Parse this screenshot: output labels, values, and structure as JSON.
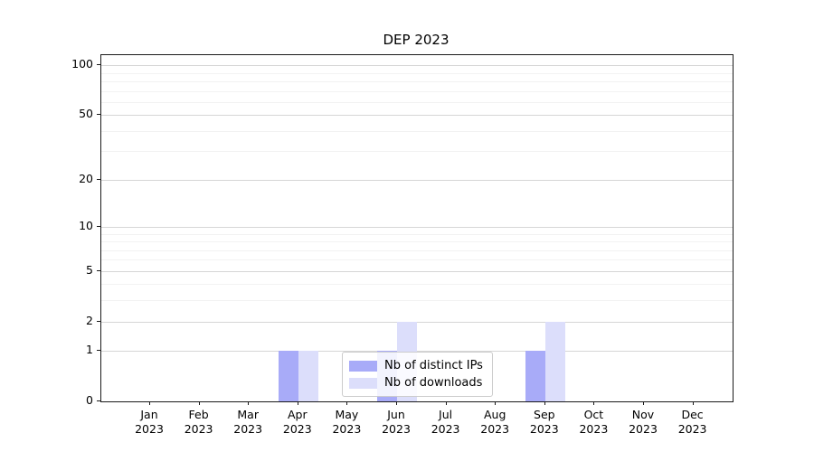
{
  "chart_data": {
    "type": "bar",
    "title": "DEP 2023",
    "categories": [
      {
        "month": "Jan",
        "year": "2023"
      },
      {
        "month": "Feb",
        "year": "2023"
      },
      {
        "month": "Mar",
        "year": "2023"
      },
      {
        "month": "Apr",
        "year": "2023"
      },
      {
        "month": "May",
        "year": "2023"
      },
      {
        "month": "Jun",
        "year": "2023"
      },
      {
        "month": "Jul",
        "year": "2023"
      },
      {
        "month": "Aug",
        "year": "2023"
      },
      {
        "month": "Sep",
        "year": "2023"
      },
      {
        "month": "Oct",
        "year": "2023"
      },
      {
        "month": "Nov",
        "year": "2023"
      },
      {
        "month": "Dec",
        "year": "2023"
      }
    ],
    "series": [
      {
        "name": "Nb of distinct IPs",
        "color": "#a8abf8",
        "values": [
          0,
          0,
          0,
          1,
          0,
          1,
          0,
          0,
          1,
          0,
          0,
          0
        ]
      },
      {
        "name": "Nb of downloads",
        "color": "#dcdefb",
        "values": [
          0,
          0,
          0,
          1,
          0,
          2,
          0,
          0,
          2,
          0,
          0,
          0
        ]
      }
    ],
    "yaxis": {
      "scale": "log1p",
      "ticks": [
        0,
        1,
        2,
        5,
        10,
        20,
        50,
        100
      ],
      "minor_ticks": [
        3,
        4,
        6,
        7,
        8,
        9,
        30,
        40,
        60,
        70,
        80,
        90
      ],
      "ylim": [
        0,
        115
      ]
    },
    "xlabel": "",
    "ylabel": "",
    "grid": true,
    "legend": {
      "position": "lower center"
    }
  }
}
